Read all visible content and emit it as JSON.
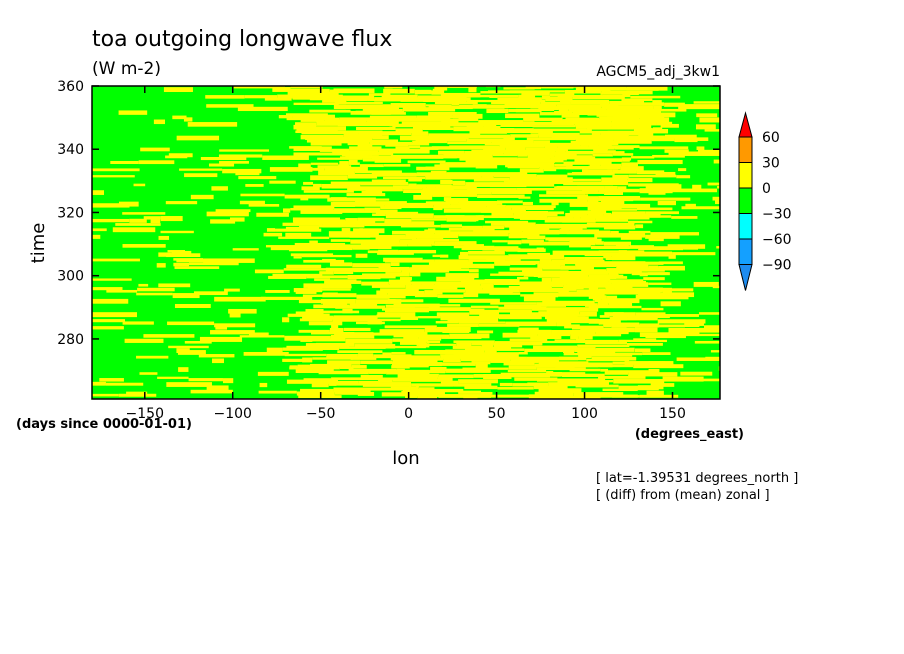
{
  "chart_data": {
    "type": "heatmap",
    "title": "toa outgoing longwave flux",
    "subtitle": "(W m-2)",
    "run_label": "AGCM5_adj_3kw1",
    "xlabel": "lon",
    "x_units": "(degrees_east)",
    "ylabel": "time",
    "y_units": "(days since 0000-01-01)",
    "xlim": [
      -180,
      177
    ],
    "ylim": [
      261,
      360
    ],
    "x_ticks": [
      -150,
      -100,
      -50,
      0,
      50,
      100,
      150
    ],
    "y_ticks": [
      280,
      300,
      320,
      340,
      360
    ],
    "notes": [
      "[ lat=-1.39531 degrees_north ]",
      "[ (diff) from (mean) zonal ]"
    ],
    "colorbar": {
      "levels": [
        -90,
        -60,
        -30,
        0,
        30,
        60
      ],
      "colors": [
        "#1e8cf0",
        "#14a0ff",
        "#00ffff",
        "#00ff00",
        "#ffff00",
        "#ff9900",
        "#ff0000"
      ]
    },
    "field": {
      "description_values": "anomaly field drawn from two categories in the visible range",
      "categories_present": [
        "-30 to 0",
        "0 to 30"
      ],
      "yellow_band_lon": [
        -60,
        150
      ]
    }
  }
}
